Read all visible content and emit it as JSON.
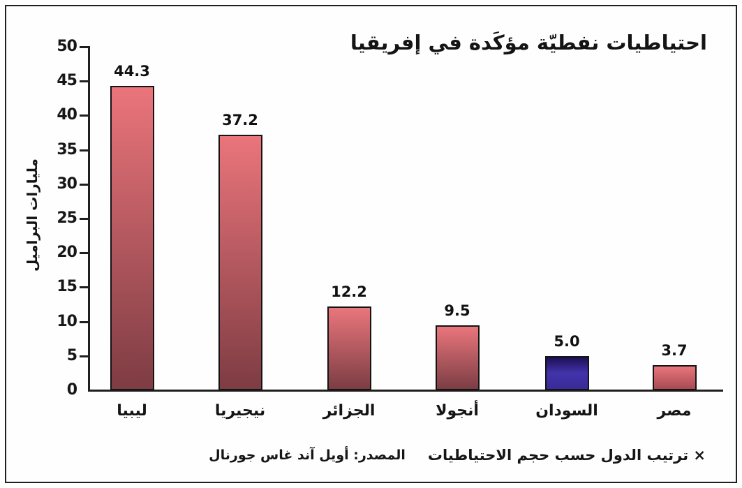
{
  "title": "احتياطيات نفطيّة مؤكَدة في إفريقيا",
  "y_axis": {
    "label": "مليارات البراميل",
    "tick_values": [
      0,
      5,
      10,
      15,
      20,
      25,
      30,
      35,
      40,
      45,
      50
    ]
  },
  "chart_data": {
    "type": "bar",
    "title": "احتياطيات نفطيّة مؤكَدة في إفريقيا",
    "ylabel": "مليارات البراميل",
    "ylim": [
      0,
      50
    ],
    "grid": false,
    "legend": false,
    "categories": [
      "ليبيا",
      "نيجيريا",
      "الجزائر",
      "أنجولا",
      "السودان",
      "مصر"
    ],
    "values": [
      44.3,
      37.2,
      12.2,
      9.5,
      5.0,
      3.7
    ],
    "value_labels": [
      "44.3",
      "37.2",
      "12.2",
      "9.5",
      "5.0",
      "3.7"
    ],
    "bar_gradients": [
      [
        "#ea757b",
        "#7e3c43"
      ],
      [
        "#ea757b",
        "#7e3c43"
      ],
      [
        "#e9767c",
        "#7c3d44"
      ],
      [
        "#e9767c",
        "#7c3d44"
      ],
      [
        "#1d1054",
        "#4233ab",
        "#3a2b97"
      ],
      [
        "#e9757b",
        "#a84b53"
      ]
    ],
    "bar_border_color": "#141414",
    "axis_color": "#1f1f1f"
  },
  "footer": {
    "source": "المصدر: أويل آند غاس جورنال",
    "note": "× ترتيب الدول حسب حجم الاحتياطيات"
  }
}
